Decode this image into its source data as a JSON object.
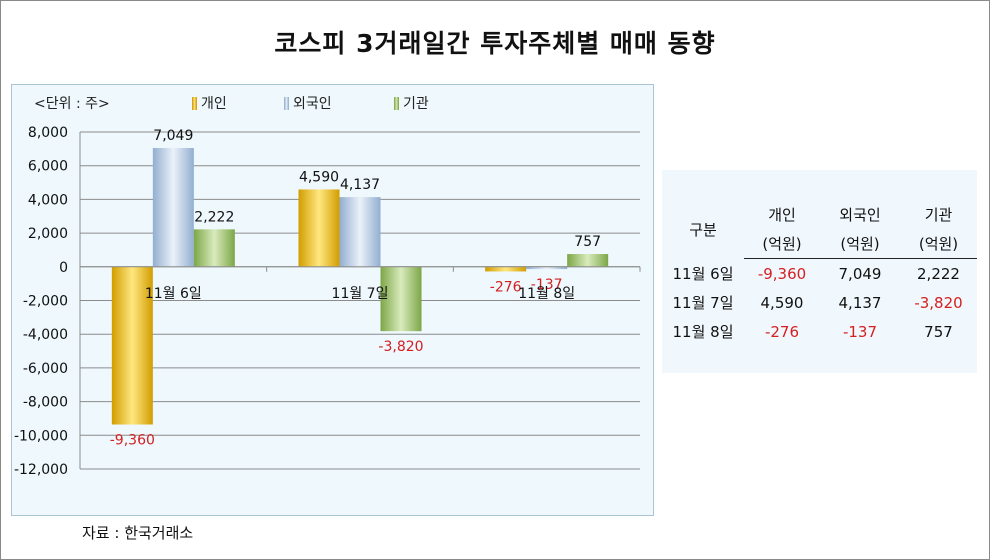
{
  "title": "코스피 3거래일간 투자주체별 매매 동향",
  "unit_label": "<단위 : 주>",
  "source": "자료 : 한국거래소",
  "colors": {
    "individual": "#f2c12e",
    "foreign": "#b7cde6",
    "institution": "#9dbd6a",
    "negative_text": "#d42020",
    "panel_bg": "#eef8fd"
  },
  "chart_data": {
    "type": "bar",
    "categories": [
      "11월 6일",
      "11월 7일",
      "11월 8일"
    ],
    "series": [
      {
        "name": "개인",
        "values": [
          -9360,
          4590,
          -276
        ],
        "labels": [
          "-9,360",
          "4,590",
          "-276"
        ]
      },
      {
        "name": "외국인",
        "values": [
          7049,
          4137,
          -137
        ],
        "labels": [
          "7,049",
          "4,137",
          "-137"
        ]
      },
      {
        "name": "기관",
        "values": [
          2222,
          -3820,
          757
        ],
        "labels": [
          "2,222",
          "-3,820",
          "757"
        ]
      }
    ],
    "ylim": [
      -12000,
      8000
    ],
    "yticks": [
      "8,000",
      "6,000",
      "4,000",
      "2,000",
      "0",
      "-2,000",
      "-4,000",
      "-6,000",
      "-8,000",
      "-10,000",
      "-12,000"
    ],
    "ytick_values": [
      8000,
      6000,
      4000,
      2000,
      0,
      -2000,
      -4000,
      -6000,
      -8000,
      -10000,
      -12000
    ],
    "grid": true,
    "legend": "top"
  },
  "table": {
    "header": {
      "col0": "구분",
      "col1_top": "개인",
      "col2_top": "외국인",
      "col3_top": "기관",
      "unit": "(억원)"
    },
    "rows": [
      {
        "date": "11월 6일",
        "individual": "-9,360",
        "foreign": "7,049",
        "institution": "2,222"
      },
      {
        "date": "11월 7일",
        "individual": "4,590",
        "foreign": "4,137",
        "institution": "-3,820"
      },
      {
        "date": "11월 8일",
        "individual": "-276",
        "foreign": "-137",
        "institution": "757"
      }
    ]
  }
}
